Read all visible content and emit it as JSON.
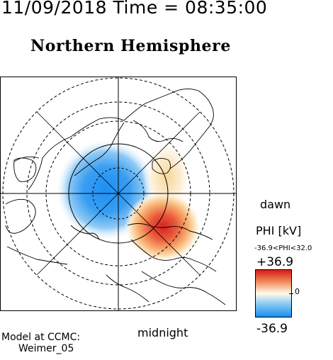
{
  "header": {
    "timestamp": "11/09/2018 Time = 08:35:00",
    "hemisphere": "Northern Hemisphere"
  },
  "map": {
    "labels": {
      "dawn": "dawn",
      "midnight": "midnight"
    },
    "center_pole": "north-geomagnetic-pole"
  },
  "colorbar": {
    "title": "PHI [kV]",
    "range_text": "-36.9<PHI<32.0",
    "max_label": "+36.9",
    "zero_label": "0",
    "min_label": "-36.9",
    "colors": {
      "high": "#d71b1b",
      "mid": "#fffbe8",
      "low": "#1a8ef0"
    }
  },
  "credit": {
    "line1": "Model at CCMC:",
    "line2": "Weimer_05"
  }
}
